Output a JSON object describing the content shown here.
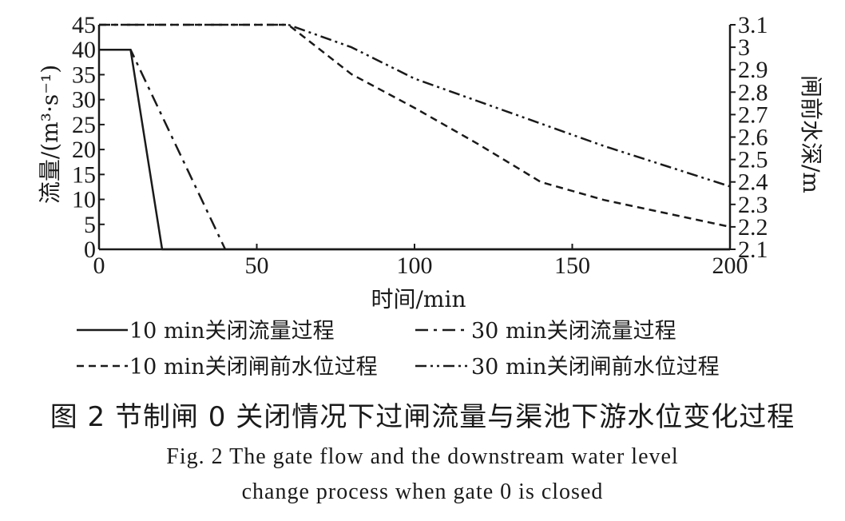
{
  "chart_data": {
    "type": "line",
    "x": {
      "label": "时间/min",
      "lim": [
        0,
        200
      ],
      "ticks": [
        0,
        50,
        100,
        150,
        200
      ]
    },
    "y_left": {
      "label": "流量/(m³·s⁻¹)",
      "lim": [
        0,
        45
      ],
      "ticks": [
        0,
        5,
        10,
        15,
        20,
        25,
        30,
        35,
        40,
        45
      ]
    },
    "y_right": {
      "label": "闸前水深/m",
      "lim": [
        2.1,
        3.1
      ],
      "ticks": [
        2.1,
        2.2,
        2.3,
        2.4,
        2.5,
        2.6,
        2.7,
        2.8,
        2.9,
        3.0,
        3.1
      ],
      "tick_labels": [
        "2.1",
        "2.2",
        "2.3",
        "2.4",
        "2.5",
        "2.6",
        "2.7",
        "2.8",
        "2.9",
        "3",
        "3.1"
      ]
    },
    "series": [
      {
        "name": "10 min关闭流量过程",
        "axis": "left",
        "style": "solid",
        "x": [
          0,
          10,
          20,
          200
        ],
        "y": [
          40,
          40,
          0,
          0
        ]
      },
      {
        "name": "30 min关闭流量过程",
        "axis": "left",
        "style": "dashdot",
        "x": [
          0,
          10,
          40
        ],
        "y": [
          40,
          40,
          0
        ]
      },
      {
        "name": "10 min关闭闸前水位过程",
        "axis": "right",
        "style": "dash",
        "x": [
          0,
          60,
          80,
          100,
          120,
          140,
          160,
          180,
          200
        ],
        "y": [
          3.1,
          3.1,
          2.88,
          2.73,
          2.57,
          2.4,
          2.32,
          2.26,
          2.2
        ]
      },
      {
        "name": "30 min关闭闸前水位过程",
        "axis": "right",
        "style": "dashdotdot",
        "x": [
          0,
          60,
          80,
          100,
          120,
          140,
          160,
          180,
          200
        ],
        "y": [
          3.1,
          3.1,
          3.0,
          2.86,
          2.76,
          2.66,
          2.56,
          2.47,
          2.38
        ]
      }
    ]
  },
  "legend": {
    "items": [
      "10 min关闭流量过程",
      "30 min关闭流量过程",
      "10 min关闭闸前水位过程",
      "30 min关闭闸前水位过程"
    ]
  },
  "caption": {
    "cn": "图 2   节制闸 0 关闭情况下过闸流量与渠池下游水位变化过程",
    "en_line1": "Fig. 2   The gate flow and the downstream water level",
    "en_line2": "change process when gate 0 is closed"
  }
}
